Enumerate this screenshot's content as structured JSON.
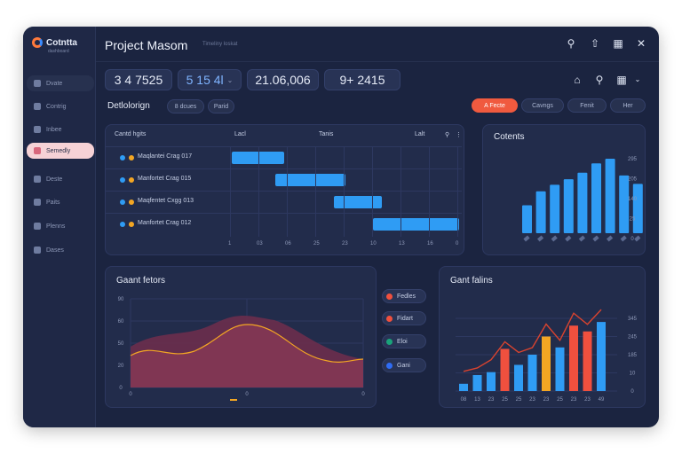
{
  "brand": {
    "name": "Cotntta",
    "sub": "dashboard"
  },
  "window": {
    "title": "Project Masom",
    "subtitle": "Timeliny loskat"
  },
  "sidebar": {
    "items": [
      {
        "label": "Dvate"
      },
      {
        "label": "Contrig"
      },
      {
        "label": "Inbee"
      },
      {
        "label": "Semedly"
      },
      {
        "label": "Deste"
      },
      {
        "label": "Paits"
      },
      {
        "label": "Plenns"
      },
      {
        "label": "Dases"
      }
    ]
  },
  "metrics": [
    {
      "value": "3 4 7525"
    },
    {
      "value": "5 15 4l"
    },
    {
      "value": "21.06,006"
    },
    {
      "value": "9+ 2415"
    }
  ],
  "section": {
    "title": "Detlolorign",
    "chips": [
      "8 dcues",
      "Parid"
    ],
    "actions": [
      "A Fecte",
      "Cavngs",
      "Fenit",
      "Her"
    ]
  },
  "gantt": {
    "title": "Cantd hgits",
    "headers": [
      "Lacl",
      "Tanis",
      "Lalt"
    ],
    "rows": [
      {
        "label": "Maqlantei Crag 017",
        "start": 0.0,
        "end": 0.23
      },
      {
        "label": "Manfortet Crag 015",
        "start": 0.19,
        "end": 0.5
      },
      {
        "label": "Maqfentet Cxgg 013",
        "start": 0.45,
        "end": 0.66
      },
      {
        "label": "Manfortet Crag 012",
        "start": 0.62,
        "end": 1.0
      }
    ],
    "ticks": [
      "1",
      "03",
      "06",
      "25",
      "23",
      "10",
      "13",
      "16",
      "0"
    ]
  },
  "contents_chart": {
    "title": "Cotents",
    "values": [
      30,
      45,
      52,
      58,
      65,
      75,
      80,
      62,
      53
    ],
    "yticks": [
      "295",
      "205",
      "140",
      "25",
      "0"
    ]
  },
  "area_chart": {
    "title": "Gaant fetors",
    "yticks": [
      "90",
      "60",
      "50",
      "20",
      "0"
    ],
    "xticks": [
      "0",
      "0",
      "0"
    ],
    "legend": [
      "Fedles",
      "Fidart",
      "Eloi",
      "Gani"
    ]
  },
  "bars_chart": {
    "title": "Gant falins",
    "values": [
      10,
      22,
      26,
      58,
      36,
      50,
      75,
      60,
      90,
      82,
      95
    ],
    "colors": [
      "#2f9cf4",
      "#2f9cf4",
      "#2f9cf4",
      "#f0503e",
      "#2f9cf4",
      "#2f9cf4",
      "#f3a623",
      "#2f9cf4",
      "#f0503e",
      "#f0503e",
      "#2f9cf4"
    ],
    "yticks": [
      "345",
      "245",
      "185",
      "10",
      "0"
    ],
    "xticks": [
      "08",
      "13",
      "23",
      "25",
      "25",
      "23",
      "23",
      "25",
      "23",
      "23",
      "49"
    ]
  },
  "colors": {
    "accent": "#2f9cf4",
    "red": "#f0503e",
    "orange": "#f3a623",
    "bg": "#1b2440"
  }
}
